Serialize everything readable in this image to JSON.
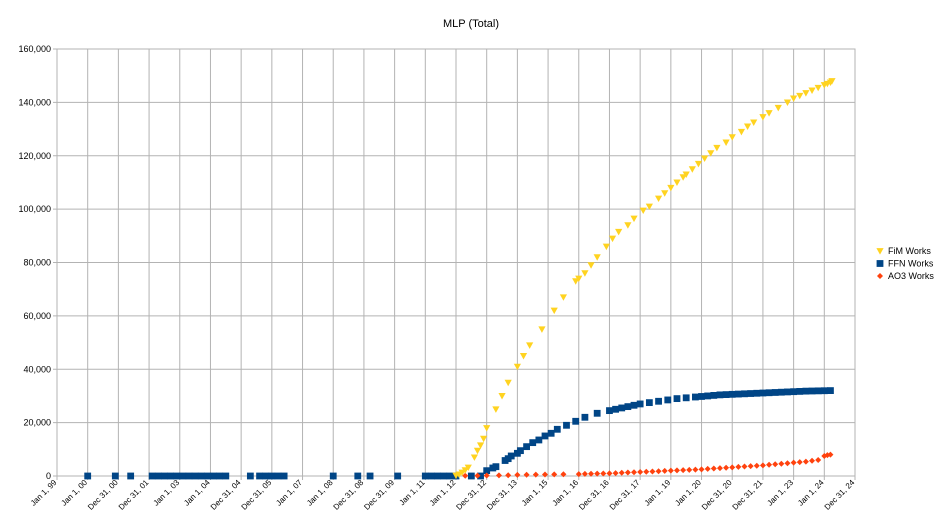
{
  "chart_data": {
    "type": "scatter",
    "title": "MLP (Total)",
    "xlabel": "",
    "ylabel": "",
    "ylim": [
      0,
      160000
    ],
    "yticks": [
      0,
      20000,
      40000,
      60000,
      80000,
      100000,
      120000,
      140000,
      160000
    ],
    "ytick_labels": [
      "0",
      "20,000",
      "40,000",
      "60,000",
      "80,000",
      "100,000",
      "120,000",
      "140,000",
      "160,000"
    ],
    "xlim": [
      1999.0,
      2025.0
    ],
    "xticks": [
      1999.0,
      2000.0,
      2001.0,
      2002.0,
      2003.0,
      2004.0,
      2005.0,
      2006.0,
      2007.0,
      2008.0,
      2009.0,
      2010.0,
      2011.0,
      2012.0,
      2013.0,
      2014.0,
      2015.0,
      2016.0,
      2017.0,
      2018.0,
      2019.0,
      2020.0,
      2021.0,
      2022.0,
      2023.0,
      2024.0,
      2025.0
    ],
    "xtick_labels": [
      "Jan 1, 99",
      "Jan 1, 00",
      "Dec 31, 00",
      "Dec 31, 01",
      "Jan 1, 03",
      "Jan 1, 04",
      "Dec 31, 04",
      "Dec 31, 05",
      "Jan 1, 07",
      "Jan 1, 08",
      "Dec 31, 08",
      "Dec 31, 09",
      "Jan 1, 11",
      "Jan 1, 12",
      "Dec 31, 12",
      "Dec 31, 13",
      "Jan 1, 15",
      "Jan 1, 16",
      "Dec 31, 16",
      "Dec 31, 17",
      "Jan 1, 19",
      "Jan 1, 20",
      "Dec 31, 20",
      "Dec 31, 21",
      "Jan 1, 23",
      "Jan 1, 24",
      "Dec 31, 24"
    ],
    "grid": true,
    "legend_position": "right",
    "series": [
      {
        "name": "FiM Works",
        "color": "#ffd320",
        "marker": "triangle-down",
        "points": [
          [
            2012.0,
            200
          ],
          [
            2012.1,
            600
          ],
          [
            2012.2,
            1300
          ],
          [
            2012.3,
            2200
          ],
          [
            2012.4,
            3200
          ],
          [
            2012.6,
            7000
          ],
          [
            2012.7,
            9500
          ],
          [
            2012.8,
            11500
          ],
          [
            2012.9,
            14000
          ],
          [
            2013.0,
            18000
          ],
          [
            2013.3,
            25000
          ],
          [
            2013.5,
            30000
          ],
          [
            2013.7,
            35000
          ],
          [
            2014.0,
            41000
          ],
          [
            2014.2,
            45000
          ],
          [
            2014.4,
            49000
          ],
          [
            2014.8,
            55000
          ],
          [
            2015.2,
            62000
          ],
          [
            2015.5,
            67000
          ],
          [
            2015.9,
            73000
          ],
          [
            2016.0,
            74000
          ],
          [
            2016.2,
            76000
          ],
          [
            2016.4,
            79000
          ],
          [
            2016.6,
            82000
          ],
          [
            2016.9,
            86000
          ],
          [
            2017.1,
            89000
          ],
          [
            2017.3,
            91500
          ],
          [
            2017.6,
            94000
          ],
          [
            2017.8,
            96500
          ],
          [
            2018.1,
            99500
          ],
          [
            2018.3,
            101000
          ],
          [
            2018.6,
            104000
          ],
          [
            2018.8,
            106000
          ],
          [
            2019.0,
            108000
          ],
          [
            2019.2,
            110000
          ],
          [
            2019.4,
            112000
          ],
          [
            2019.5,
            113000
          ],
          [
            2019.7,
            115000
          ],
          [
            2019.9,
            117000
          ],
          [
            2020.1,
            119000
          ],
          [
            2020.3,
            121000
          ],
          [
            2020.5,
            123000
          ],
          [
            2020.8,
            125000
          ],
          [
            2021.0,
            127000
          ],
          [
            2021.3,
            129000
          ],
          [
            2021.5,
            131000
          ],
          [
            2021.7,
            132500
          ],
          [
            2022.0,
            134500
          ],
          [
            2022.2,
            136000
          ],
          [
            2022.5,
            138000
          ],
          [
            2022.8,
            140000
          ],
          [
            2023.0,
            141500
          ],
          [
            2023.2,
            142500
          ],
          [
            2023.4,
            143500
          ],
          [
            2023.6,
            144500
          ],
          [
            2023.8,
            145500
          ],
          [
            2024.0,
            146500
          ],
          [
            2024.1,
            147000
          ],
          [
            2024.2,
            147500
          ],
          [
            2024.25,
            148000
          ]
        ]
      },
      {
        "name": "FFN Works",
        "color": "#004586",
        "marker": "square",
        "points": [
          [
            2000.0,
            0
          ],
          [
            2000.9,
            0
          ],
          [
            2001.4,
            0
          ],
          [
            2002.1,
            0
          ],
          [
            2002.3,
            0
          ],
          [
            2002.5,
            0
          ],
          [
            2002.7,
            0
          ],
          [
            2002.9,
            0
          ],
          [
            2003.1,
            0
          ],
          [
            2003.3,
            0
          ],
          [
            2003.5,
            0
          ],
          [
            2003.7,
            0
          ],
          [
            2003.9,
            0
          ],
          [
            2004.1,
            0
          ],
          [
            2004.3,
            0
          ],
          [
            2004.5,
            0
          ],
          [
            2005.3,
            0
          ],
          [
            2005.6,
            0
          ],
          [
            2005.8,
            0
          ],
          [
            2006.0,
            0
          ],
          [
            2006.2,
            0
          ],
          [
            2006.4,
            0
          ],
          [
            2008.0,
            0
          ],
          [
            2008.8,
            0
          ],
          [
            2009.2,
            0
          ],
          [
            2010.1,
            0
          ],
          [
            2011.0,
            0
          ],
          [
            2011.2,
            0
          ],
          [
            2011.4,
            0
          ],
          [
            2011.6,
            0
          ],
          [
            2011.8,
            0
          ],
          [
            2012.0,
            0
          ],
          [
            2012.5,
            0
          ],
          [
            2012.8,
            0
          ],
          [
            2013.0,
            2000
          ],
          [
            2013.2,
            3000
          ],
          [
            2013.3,
            3500
          ],
          [
            2013.6,
            5800
          ],
          [
            2013.7,
            6500
          ],
          [
            2013.8,
            7500
          ],
          [
            2014.0,
            8500
          ],
          [
            2014.1,
            9500
          ],
          [
            2014.3,
            11000
          ],
          [
            2014.5,
            12500
          ],
          [
            2014.7,
            13500
          ],
          [
            2014.9,
            15000
          ],
          [
            2015.1,
            16000
          ],
          [
            2015.3,
            17500
          ],
          [
            2015.6,
            19000
          ],
          [
            2015.9,
            20500
          ],
          [
            2016.2,
            22000
          ],
          [
            2016.6,
            23500
          ],
          [
            2017.0,
            24500
          ],
          [
            2017.2,
            25000
          ],
          [
            2017.4,
            25500
          ],
          [
            2017.6,
            26000
          ],
          [
            2017.8,
            26500
          ],
          [
            2018.0,
            27000
          ],
          [
            2018.3,
            27500
          ],
          [
            2018.6,
            28000
          ],
          [
            2018.9,
            28500
          ],
          [
            2019.2,
            29000
          ],
          [
            2019.5,
            29300
          ],
          [
            2019.8,
            29600
          ],
          [
            2020.0,
            29800
          ],
          [
            2020.2,
            30000
          ],
          [
            2020.4,
            30200
          ],
          [
            2020.6,
            30400
          ],
          [
            2020.8,
            30500
          ],
          [
            2021.0,
            30600
          ],
          [
            2021.2,
            30700
          ],
          [
            2021.4,
            30800
          ],
          [
            2021.6,
            30900
          ],
          [
            2021.8,
            31000
          ],
          [
            2022.0,
            31100
          ],
          [
            2022.2,
            31200
          ],
          [
            2022.4,
            31300
          ],
          [
            2022.6,
            31400
          ],
          [
            2022.8,
            31500
          ],
          [
            2023.0,
            31600
          ],
          [
            2023.2,
            31700
          ],
          [
            2023.4,
            31800
          ],
          [
            2023.6,
            31850
          ],
          [
            2023.8,
            31900
          ],
          [
            2024.0,
            31950
          ],
          [
            2024.2,
            32000
          ]
        ]
      },
      {
        "name": "AO3 Works",
        "color": "#ff420e",
        "marker": "diamond",
        "points": [
          [
            2012.3,
            100
          ],
          [
            2012.7,
            150
          ],
          [
            2013.0,
            200
          ],
          [
            2013.4,
            250
          ],
          [
            2013.7,
            300
          ],
          [
            2014.0,
            400
          ],
          [
            2014.3,
            450
          ],
          [
            2014.6,
            500
          ],
          [
            2014.9,
            550
          ],
          [
            2015.2,
            600
          ],
          [
            2015.5,
            650
          ],
          [
            2016.0,
            700
          ],
          [
            2016.2,
            800
          ],
          [
            2016.4,
            850
          ],
          [
            2016.6,
            900
          ],
          [
            2016.8,
            950
          ],
          [
            2017.0,
            1000
          ],
          [
            2017.2,
            1100
          ],
          [
            2017.4,
            1200
          ],
          [
            2017.6,
            1300
          ],
          [
            2017.8,
            1400
          ],
          [
            2018.0,
            1500
          ],
          [
            2018.2,
            1600
          ],
          [
            2018.4,
            1700
          ],
          [
            2018.6,
            1800
          ],
          [
            2018.8,
            1900
          ],
          [
            2019.0,
            2000
          ],
          [
            2019.2,
            2100
          ],
          [
            2019.4,
            2200
          ],
          [
            2019.6,
            2300
          ],
          [
            2019.8,
            2400
          ],
          [
            2020.0,
            2500
          ],
          [
            2020.2,
            2650
          ],
          [
            2020.4,
            2800
          ],
          [
            2020.6,
            2950
          ],
          [
            2020.8,
            3100
          ],
          [
            2021.0,
            3250
          ],
          [
            2021.2,
            3400
          ],
          [
            2021.4,
            3550
          ],
          [
            2021.6,
            3700
          ],
          [
            2021.8,
            3850
          ],
          [
            2022.0,
            4000
          ],
          [
            2022.2,
            4200
          ],
          [
            2022.4,
            4400
          ],
          [
            2022.6,
            4600
          ],
          [
            2022.8,
            4800
          ],
          [
            2023.0,
            5000
          ],
          [
            2023.2,
            5200
          ],
          [
            2023.4,
            5400
          ],
          [
            2023.6,
            5700
          ],
          [
            2023.8,
            6000
          ],
          [
            2024.0,
            7500
          ],
          [
            2024.1,
            7800
          ],
          [
            2024.2,
            8000
          ]
        ]
      }
    ]
  }
}
